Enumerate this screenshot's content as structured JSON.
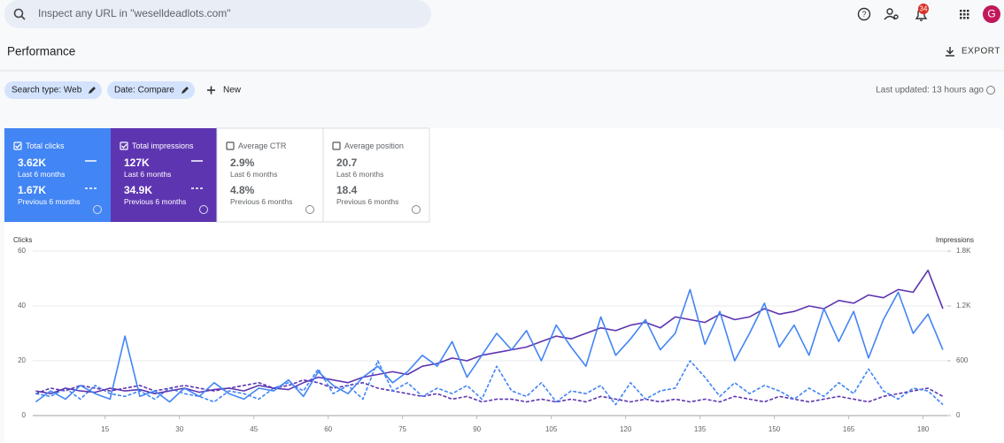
{
  "search": {
    "placeholder": "Inspect any URL in \"weselldeadlots.com\""
  },
  "header": {
    "notifications": "34",
    "avatar": "G"
  },
  "page": {
    "title": "Performance",
    "export": "EXPORT"
  },
  "filters": {
    "chips": [
      "Search type: Web",
      "Date: Compare"
    ],
    "new": "New",
    "last_updated": "Last updated: 13 hours ago"
  },
  "metrics": [
    {
      "label": "Total clicks",
      "checked": true,
      "color": "#4285f4",
      "current": "3.62K",
      "current_period": "Last 6 months",
      "previous": "1.67K",
      "previous_period": "Previous 6 months"
    },
    {
      "label": "Total impressions",
      "checked": true,
      "color": "#5e35b1",
      "current": "127K",
      "current_period": "Last 6 months",
      "previous": "34.9K",
      "previous_period": "Previous 6 months"
    },
    {
      "label": "Average CTR",
      "checked": false,
      "color": "#ffffff",
      "current": "2.9%",
      "current_period": "Last 6 months",
      "previous": "4.8%",
      "previous_period": "Previous 6 months"
    },
    {
      "label": "Average position",
      "checked": false,
      "color": "#ffffff",
      "current": "20.7",
      "current_period": "Last 6 months",
      "previous": "18.4",
      "previous_period": "Previous 6 months"
    }
  ],
  "chart_data": {
    "type": "line",
    "y_label": "Clicks",
    "y2_label": "Impressions",
    "x": [
      1,
      4,
      7,
      10,
      13,
      16,
      19,
      22,
      25,
      28,
      31,
      34,
      37,
      40,
      43,
      46,
      49,
      52,
      55,
      58,
      61,
      64,
      67,
      70,
      73,
      76,
      79,
      82,
      85,
      88,
      91,
      94,
      97,
      100,
      103,
      106,
      109,
      112,
      115,
      118,
      121,
      124,
      127,
      130,
      133,
      136,
      139,
      142,
      145,
      148,
      151,
      154,
      157,
      160,
      163,
      166,
      169,
      172,
      175,
      178,
      181,
      184
    ],
    "xlim": [
      0.4,
      184.9
    ],
    "xticks": [
      15,
      30,
      45,
      60,
      75,
      90,
      105,
      120,
      135,
      150,
      165,
      180
    ],
    "ylim": [
      0,
      60
    ],
    "yticks": [
      0,
      20,
      40,
      60
    ],
    "y2lim": [
      0,
      1800
    ],
    "y2ticks": [
      0,
      600,
      {
        "value": 1200,
        "label": "1.2K"
      },
      {
        "value": 1800,
        "label": "1.8K"
      }
    ],
    "grid": true,
    "series": [
      {
        "color": "#5e35b1",
        "dashed": true,
        "axis": "y2",
        "values": [
          240,
          300,
          270,
          330,
          300,
          270,
          300,
          330,
          270,
          300,
          330,
          300,
          270,
          300,
          330,
          360,
          300,
          330,
          390,
          360,
          300,
          330,
          360,
          300,
          270,
          240,
          210,
          240,
          180,
          210,
          150,
          180,
          180,
          150,
          180,
          150,
          180,
          150,
          210,
          180,
          150,
          180,
          150,
          180,
          150,
          180,
          150,
          210,
          180,
          150,
          210,
          180,
          150,
          180,
          210,
          180,
          150,
          210,
          240,
          270,
          300,
          210
        ]
      },
      {
        "color": "#4285f4",
        "dashed": true,
        "axis": "y",
        "values": [
          8,
          7,
          10,
          6,
          11,
          8,
          7,
          9,
          6,
          10,
          8,
          7,
          5,
          9,
          8,
          6,
          10,
          12,
          9,
          17,
          8,
          11,
          6,
          20,
          9,
          12,
          7,
          10,
          8,
          11,
          6,
          18,
          9,
          7,
          12,
          5,
          9,
          8,
          11,
          4,
          12,
          6,
          9,
          10,
          20,
          14,
          7,
          12,
          8,
          11,
          9,
          6,
          10,
          7,
          12,
          8,
          17,
          9,
          6,
          10,
          9,
          4
        ]
      },
      {
        "color": "#5e35b1",
        "dashed": false,
        "axis": "y2",
        "values": [
          270,
          240,
          300,
          270,
          255,
          300,
          270,
          285,
          240,
          270,
          300,
          255,
          285,
          300,
          270,
          330,
          300,
          285,
          360,
          420,
          390,
          360,
          420,
          450,
          480,
          450,
          540,
          570,
          630,
          600,
          660,
          690,
          720,
          750,
          810,
          870,
          840,
          900,
          960,
          930,
          990,
          1020,
          960,
          1080,
          1050,
          1020,
          1110,
          1050,
          1080,
          1170,
          1110,
          1140,
          1200,
          1170,
          1260,
          1230,
          1320,
          1290,
          1380,
          1350,
          1590,
          1170
        ]
      },
      {
        "color": "#4285f4",
        "dashed": false,
        "axis": "y",
        "values": [
          5,
          9,
          6,
          11,
          8,
          6,
          29,
          7,
          9,
          5,
          10,
          7,
          12,
          8,
          6,
          10,
          9,
          13,
          7,
          16,
          11,
          8,
          14,
          18,
          12,
          16,
          22,
          18,
          27,
          14,
          22,
          30,
          24,
          31,
          20,
          33,
          25,
          18,
          36,
          22,
          28,
          35,
          24,
          30,
          46,
          26,
          38,
          20,
          30,
          41,
          25,
          33,
          22,
          39,
          27,
          38,
          21,
          35,
          45,
          30,
          37,
          24
        ]
      }
    ]
  }
}
